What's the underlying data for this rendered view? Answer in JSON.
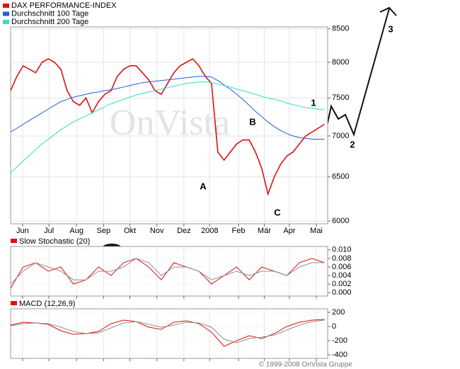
{
  "chart_data": [
    {
      "type": "line",
      "log": true,
      "grid": true,
      "watermark": "OnVista",
      "xlim": [
        0,
        50.5
      ],
      "ylim": [
        5970,
        8530
      ],
      "xticks": [
        {
          "value": 1.9,
          "label": "Jun"
        },
        {
          "value": 6.1,
          "label": "Jul"
        },
        {
          "value": 10.5,
          "label": "Aug"
        },
        {
          "value": 14.8,
          "label": "Sep"
        },
        {
          "value": 19.0,
          "label": "Okt"
        },
        {
          "value": 23.3,
          "label": "Nov"
        },
        {
          "value": 27.6,
          "label": "Dez"
        },
        {
          "value": 31.7,
          "label": "2008"
        },
        {
          "value": 36.3,
          "label": "Feb"
        },
        {
          "value": 40.4,
          "label": "Mär"
        },
        {
          "value": 44.4,
          "label": "Apr"
        },
        {
          "value": 48.7,
          "label": "Mai"
        }
      ],
      "yticks": [
        6000,
        6500,
        7000,
        7500,
        8000,
        8500
      ],
      "x": [
        0,
        1,
        2,
        3,
        4,
        5,
        6,
        7,
        8,
        9,
        10,
        11,
        12,
        13,
        14,
        15,
        16,
        17,
        18,
        19,
        20,
        21,
        22,
        23,
        24,
        25,
        26,
        27,
        28,
        29,
        30,
        31,
        32,
        33,
        34,
        35,
        36,
        37,
        38,
        39,
        40,
        41,
        42,
        43,
        44,
        45,
        46,
        47,
        48,
        49,
        50
      ],
      "series": [
        {
          "name": "DAX PERFORMANCE-INDEX",
          "color": "#e01010",
          "values": [
            7600,
            7800,
            7950,
            7900,
            7850,
            8000,
            8050,
            8000,
            7900,
            7600,
            7450,
            7400,
            7500,
            7300,
            7450,
            7550,
            7600,
            7800,
            7900,
            7950,
            7950,
            7850,
            7750,
            7600,
            7550,
            7700,
            7850,
            7950,
            8000,
            8050,
            7950,
            7800,
            7700,
            6800,
            6700,
            6800,
            6900,
            6950,
            6950,
            6800,
            6600,
            6300,
            6500,
            6650,
            6750,
            6800,
            6900,
            7000,
            7050,
            7100,
            7150
          ]
        },
        {
          "name": "Durchschnitt 100 Tage",
          "color": "#1f5fd8",
          "values": [
            7050,
            7100,
            7150,
            7200,
            7250,
            7300,
            7350,
            7400,
            7450,
            7480,
            7510,
            7530,
            7550,
            7570,
            7580,
            7600,
            7610,
            7630,
            7650,
            7670,
            7690,
            7710,
            7720,
            7730,
            7740,
            7750,
            7760,
            7770,
            7780,
            7790,
            7800,
            7800,
            7790,
            7740,
            7680,
            7620,
            7550,
            7480,
            7400,
            7320,
            7250,
            7180,
            7120,
            7070,
            7030,
            7000,
            6980,
            6970,
            6960,
            6960,
            6960
          ]
        },
        {
          "name": "Durchschnitt 200 Tage",
          "color": "#30e0c0",
          "values": [
            6550,
            6620,
            6690,
            6760,
            6830,
            6900,
            6960,
            7020,
            7080,
            7130,
            7180,
            7220,
            7260,
            7300,
            7340,
            7380,
            7420,
            7450,
            7480,
            7510,
            7540,
            7560,
            7580,
            7600,
            7620,
            7640,
            7660,
            7680,
            7700,
            7710,
            7720,
            7720,
            7710,
            7690,
            7670,
            7650,
            7620,
            7600,
            7570,
            7550,
            7520,
            7500,
            7480,
            7460,
            7430,
            7410,
            7390,
            7370,
            7360,
            7350,
            7340
          ]
        }
      ],
      "annotations": [
        "1",
        "2",
        "3",
        "A",
        "B",
        "C"
      ]
    },
    {
      "type": "line",
      "title": "Slow Stochastic (20)",
      "grid": true,
      "xlim": [
        0,
        50.5
      ],
      "ylim": [
        -0.0008,
        0.0108
      ],
      "yticks": [
        {
          "value": 0.01,
          "label": "0.010"
        },
        {
          "value": 0.008,
          "label": "0.008"
        },
        {
          "value": 0.006,
          "label": "0.006"
        },
        {
          "value": 0.004,
          "label": "0.004"
        },
        {
          "value": 0.002,
          "label": "0.002"
        },
        {
          "value": 0,
          "label": "0.000"
        }
      ],
      "x": [
        0,
        2,
        4,
        6,
        8,
        10,
        12,
        14,
        16,
        18,
        20,
        22,
        24,
        26,
        28,
        30,
        32,
        34,
        36,
        38,
        40,
        42,
        44,
        46,
        48,
        50
      ],
      "series": [
        {
          "color": "#e01010",
          "values": [
            0.001,
            0.006,
            0.007,
            0.005,
            0.006,
            0.002,
            0.003,
            0.006,
            0.004,
            0.007,
            0.008,
            0.006,
            0.003,
            0.007,
            0.006,
            0.005,
            0.002,
            0.004,
            0.006,
            0.003,
            0.006,
            0.005,
            0.004,
            0.007,
            0.008,
            0.007
          ]
        },
        {
          "color": "#909090",
          "values": [
            0.002,
            0.005,
            0.007,
            0.006,
            0.005,
            0.003,
            0.003,
            0.005,
            0.005,
            0.006,
            0.008,
            0.007,
            0.004,
            0.006,
            0.006,
            0.005,
            0.003,
            0.004,
            0.005,
            0.004,
            0.005,
            0.005,
            0.004,
            0.006,
            0.007,
            0.007
          ]
        }
      ]
    },
    {
      "type": "line",
      "title": "MACD (12,26,9)",
      "grid": true,
      "source": "© 1999-2008 OnVista Gruppe",
      "xlim": [
        0,
        50.5
      ],
      "ylim": [
        -450,
        250
      ],
      "yticks": [
        200,
        0,
        -200,
        -400
      ],
      "x": [
        0,
        2,
        4,
        6,
        8,
        10,
        12,
        14,
        16,
        18,
        20,
        22,
        24,
        26,
        28,
        30,
        32,
        34,
        36,
        38,
        40,
        42,
        44,
        46,
        48,
        50
      ],
      "series": [
        {
          "color": "#e01010",
          "values": [
            20,
            60,
            50,
            30,
            -60,
            -110,
            -100,
            -70,
            40,
            90,
            70,
            -10,
            -40,
            60,
            80,
            40,
            -80,
            -280,
            -200,
            -130,
            -170,
            -100,
            0,
            60,
            90,
            100
          ]
        },
        {
          "color": "#909090",
          "values": [
            10,
            40,
            50,
            40,
            -10,
            -70,
            -100,
            -90,
            -20,
            50,
            70,
            30,
            -10,
            20,
            60,
            50,
            -10,
            -180,
            -230,
            -170,
            -150,
            -120,
            -50,
            20,
            70,
            90
          ]
        }
      ]
    }
  ]
}
